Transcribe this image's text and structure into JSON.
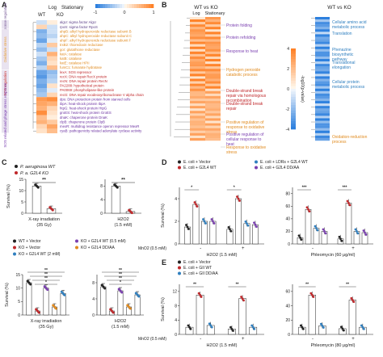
{
  "panels": {
    "A": {
      "letter": "A",
      "col_headers": [
        "Log",
        "Stationary"
      ],
      "wt_label": "WT",
      "ko_label": "KO",
      "colorbar": {
        "min": "-1",
        "mid": "0",
        "max": "1"
      },
      "groups": [
        {
          "name": "Stress response regulation",
          "color": "#7a5c99"
        },
        {
          "name": "Oxidative stress",
          "color": "#e8a13a"
        },
        {
          "name": "SOS regulation",
          "color": "#c9302c"
        },
        {
          "name": "SOS related and phage stress response",
          "color": "#7a3fb0"
        }
      ],
      "genes": [
        {
          "label": "algU: sigma factor AlgU",
          "color": "#5a3d86"
        },
        {
          "label": "rpoS: sigma factor RpoS",
          "color": "#5a3d86"
        },
        {
          "label": "ahpB: alkyl hydroperoxide reductase subunit B",
          "color": "#e08a1e"
        },
        {
          "label": "ahpC: alkyl hydroperoxide reductase subunit C",
          "color": "#e08a1e"
        },
        {
          "label": "ahpF: alkyl hydroperoxide reductase subunit F",
          "color": "#e08a1e"
        },
        {
          "label": "trxB2: thioredoxin reductase",
          "color": "#e08a1e"
        },
        {
          "label": "gor: glutathione reductase",
          "color": "#e08a1e"
        },
        {
          "label": "katA: catalase",
          "color": "#e08a1e"
        },
        {
          "label": "katB: catalase",
          "color": "#e08a1e"
        },
        {
          "label": "katE: catalase HPII",
          "color": "#e08a1e"
        },
        {
          "label": "fumC1: fumarate hydratase",
          "color": "#e08a1e"
        },
        {
          "label": "lexA: SOS repressor",
          "color": "#c0282b"
        },
        {
          "label": "recX: DNA repair RecX protein",
          "color": "#c0282b"
        },
        {
          "label": "recN: DNA repair protein RecN",
          "color": "#c0282b"
        },
        {
          "label": "PA2288: hypothetical protein",
          "color": "#c0282b"
        },
        {
          "label": "PA0069: phospholipase-like protein",
          "color": "#c0282b"
        },
        {
          "label": "recG: DNA repair exodeoxyribonuclease V alpha chain",
          "color": "#c0282b"
        },
        {
          "label": "dps: DNA protection protein from starved cells",
          "color": "#6a2fa0"
        },
        {
          "label": "ibpA: heat-shock protein IbpA",
          "color": "#6a2fa0"
        },
        {
          "label": "htpG: heat-shock protein HtpG",
          "color": "#6a2fa0"
        },
        {
          "label": "groES: heat-shock protein GroES",
          "color": "#6a2fa0"
        },
        {
          "label": "dnaK: chaperone protein DnaK",
          "color": "#6a2fa0"
        },
        {
          "label": "clpB: chaperone protein ClpB",
          "color": "#6a2fa0"
        },
        {
          "label": "mexR: multidrug resistance operon repressor MexR",
          "color": "#6a2fa0"
        },
        {
          "label": "cyaB: pathogenicity related adenylate cyclase activity",
          "color": "#6a2fa0"
        }
      ],
      "heat": [
        [
          -0.2,
          0.1
        ],
        [
          0.3,
          -0.2
        ],
        [
          -0.6,
          -0.2
        ],
        [
          -0.5,
          -0.3
        ],
        [
          -0.7,
          -0.1
        ],
        [
          -0.3,
          0.4
        ],
        [
          -0.5,
          -0.2
        ],
        [
          -0.2,
          0.6
        ],
        [
          -0.4,
          0.3
        ],
        [
          -0.6,
          0.2
        ],
        [
          -0.3,
          0.5
        ],
        [
          -0.7,
          -0.5
        ],
        [
          -0.8,
          -0.4
        ],
        [
          -0.6,
          -0.3
        ],
        [
          -0.7,
          0.2
        ],
        [
          -0.5,
          -0.1
        ],
        [
          -0.4,
          0.3
        ],
        [
          0.8,
          0.9
        ],
        [
          0.7,
          0.6
        ],
        [
          0.6,
          0.3
        ],
        [
          0.9,
          0.2
        ],
        [
          0.5,
          0.1
        ],
        [
          0.6,
          0.4
        ],
        [
          0.3,
          0.7
        ],
        [
          0.2,
          0.5
        ]
      ]
    },
    "B": {
      "letter": "B",
      "left_title": "WT vs KO",
      "left_cols": [
        "Log",
        "Stationary"
      ],
      "right_title": "WT vs KO",
      "legend_title": "-log10(p-value)",
      "legend_ticks": [
        "4",
        "2",
        "0",
        "-2",
        "-4"
      ],
      "left_terms": [
        {
          "label": "Protein folding",
          "color": "#7a3fb0"
        },
        {
          "label": "Protein refolding",
          "color": "#7a3fb0"
        },
        {
          "label": "Response to heat",
          "color": "#7a3fb0"
        },
        {
          "label": "Hydrogen peroxide catabolic process",
          "color": "#e08a1e"
        },
        {
          "label": "Double-strand break repair via homologous recombination",
          "color": "#c0282b"
        },
        {
          "label": "Double-strand break repair",
          "color": "#c0282b"
        },
        {
          "label": "Positive regulation of response to oxidative stress",
          "color": "#e08a1e"
        },
        {
          "label": "Positive regulation of cellular response to heat",
          "color": "#7a3fb0"
        },
        {
          "label": "Response to oxidative stress",
          "color": "#e08a1e"
        }
      ],
      "right_terms": [
        {
          "label": "Cellular amino acid metabolic process",
          "color": "#2f7fbf"
        },
        {
          "label": "Translation",
          "color": "#2f7fbf"
        },
        {
          "label": "Phenazine biosynthetic pathway",
          "color": "#2f7fbf"
        },
        {
          "label": "Translational elongation",
          "color": "#2f7fbf"
        },
        {
          "label": "Cellular protein metabolic process",
          "color": "#2f7fbf"
        },
        {
          "label": "Oxidation-reduction process",
          "color": "#e08a1e"
        }
      ]
    },
    "C": {
      "letter": "C",
      "legend1": [
        {
          "label": "P. aeruginosa WT",
          "color": "#222222"
        },
        {
          "label": "P. a. G2L4 KO",
          "color": "#c0282b"
        }
      ],
      "legend2": [
        {
          "label": "WT + Vector",
          "color": "#222222"
        },
        {
          "label": "KO + G2L4 WT (0.5 mM)",
          "color": "#7a3fb0"
        },
        {
          "label": "KO + Vector",
          "color": "#c0282b"
        },
        {
          "label": "KO + G2L4 DD/AA",
          "color": "#e08a1e"
        },
        {
          "label": "KO + G2L4 WT (2 mM)",
          "color": "#2f7fbf"
        }
      ],
      "ylabel": "Survival (%)",
      "top_plots": [
        {
          "xlabel": "X-ray irradiation",
          "xsub": "(35 Gy)",
          "yticks": [
            "0",
            "5",
            "10",
            "15"
          ],
          "ymax": 15,
          "bars": [
            {
              "value": 12,
              "color": "#222222"
            },
            {
              "value": 2,
              "color": "#c0282b"
            }
          ],
          "sig": "**"
        },
        {
          "xlabel": "H2O2",
          "xsub": "(1.5 mM)",
          "yticks": [
            "0",
            "4",
            "8"
          ],
          "ymax": 10,
          "bars": [
            {
              "value": 8,
              "color": "#222222"
            },
            {
              "value": 0.5,
              "color": "#c0282b"
            }
          ],
          "sig": "**"
        }
      ],
      "bottom_plots": [
        {
          "xlabel": "X-ray irradiation",
          "xsub": "(35 Gy)",
          "yticks": [
            "0",
            "5",
            "10",
            "15"
          ],
          "ymax": 15,
          "values": [
            12,
            1.5,
            10,
            3,
            8
          ],
          "sig": [
            "**",
            "**",
            "**",
            "*"
          ]
        },
        {
          "xlabel": "H2O2",
          "xsub": "(1.5 mM)",
          "yticks": [
            "0",
            "4",
            "8"
          ],
          "ymax": 10,
          "values": [
            7,
            1,
            6,
            2,
            5
          ],
          "sig": [
            "**",
            "**",
            "**",
            "*"
          ]
        }
      ]
    },
    "D": {
      "letter": "D",
      "legend": [
        {
          "label": "E. coli + Vector",
          "color": "#222222"
        },
        {
          "label": "E. coli + LDRs + G2L4 WT",
          "color": "#2f7fbf"
        },
        {
          "label": "E. coli + G2L4 WT",
          "color": "#c0282b"
        },
        {
          "label": "E. coli + G2L4 DD/AA",
          "color": "#7a3fb0"
        }
      ],
      "ylabel": "Survival (%)",
      "mno2_label": "MnO2 (0.5 mM)",
      "plots": [
        {
          "xlabel": "H2O2 (1.5 mM)",
          "yticks": [
            "0",
            "2",
            "4"
          ],
          "ymax": 5,
          "groups": [
            {
              "mno2": "-",
              "values": [
                1.5,
                3.5,
                2.0,
                2.0
              ],
              "sig": "*"
            },
            {
              "mno2": "+",
              "values": [
                1.3,
                4.0,
                1.8,
                1.7
              ],
              "sig": "*"
            }
          ]
        },
        {
          "xlabel": "Phleomycin (60 μg/ml)",
          "yticks": [
            "0",
            "20",
            "40",
            "60",
            "80"
          ],
          "ymax": 90,
          "groups": [
            {
              "mno2": "-",
              "values": [
                10,
                55,
                25,
                20
              ],
              "sig": "***"
            },
            {
              "mno2": "+",
              "values": [
                8,
                65,
                20,
                18
              ],
              "sig": "***"
            }
          ]
        }
      ]
    },
    "E": {
      "letter": "E",
      "legend": [
        {
          "label": "E. coli + Vector",
          "color": "#222222"
        },
        {
          "label": "E. coli + GII WT",
          "color": "#c0282b"
        },
        {
          "label": "E. coli + GII DD/AA",
          "color": "#2f7fbf"
        }
      ],
      "ylabel": "Survival (%)",
      "mno2_label": "MnO2 (0.5 mM)",
      "plots": [
        {
          "xlabel": "H2O2 (1.5 mM)",
          "yticks": [
            "0",
            "4",
            "8",
            "12"
          ],
          "ymax": 14,
          "groups": [
            {
              "mno2": "-",
              "values": [
                2,
                11,
                2.5
              ],
              "sig": "**"
            },
            {
              "mno2": "+",
              "values": [
                1.5,
                10,
                2
              ],
              "sig": "**"
            }
          ]
        },
        {
          "xlabel": "Phleomycin (80 μg/ml)",
          "yticks": [
            "0",
            "20",
            "40",
            "60"
          ],
          "ymax": 70,
          "groups": [
            {
              "mno2": "-",
              "values": [
                10,
                55,
                12
              ],
              "sig": "**"
            },
            {
              "mno2": "+",
              "values": [
                8,
                48,
                10
              ],
              "sig": "**"
            }
          ]
        }
      ]
    }
  }
}
